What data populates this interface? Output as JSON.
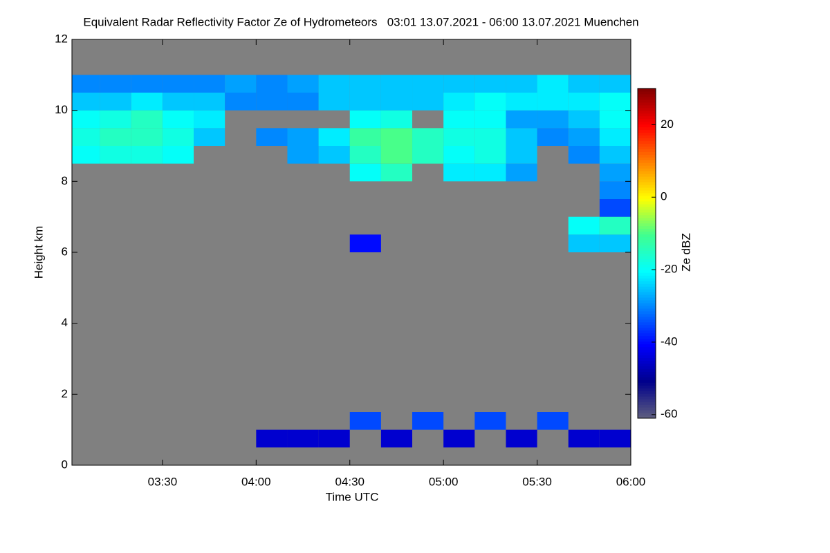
{
  "chart_data": {
    "type": "heatmap",
    "title": "Equivalent Radar Reflectivity Factor Ze of Hydrometeors   03:01 13.07.2021 - 06:00 13.07.2021 Muenchen",
    "x_label": "Time UTC",
    "y_label": "Height km",
    "colorbar_label": "Ze dBZ",
    "background_color": "#808080",
    "colormap": [
      "#5f5f7f",
      "#00008c",
      "#0000ff",
      "#0080ff",
      "#00ffff",
      "#40ff90",
      "#ffff00",
      "#ff8000",
      "#ff0000",
      "#800000"
    ],
    "clim": [
      -61,
      30
    ],
    "cticks": [
      20,
      0,
      -20,
      -40,
      -60
    ],
    "xlim": [
      181,
      360
    ],
    "xticks": [
      {
        "value": 210,
        "label": "03:30"
      },
      {
        "value": 240,
        "label": "04:00"
      },
      {
        "value": 270,
        "label": "04:30"
      },
      {
        "value": 300,
        "label": "05:00"
      },
      {
        "value": 330,
        "label": "05:30"
      },
      {
        "value": 360,
        "label": "06:00"
      }
    ],
    "ylim": [
      0,
      12
    ],
    "yticks": [
      0,
      2,
      4,
      6,
      8,
      10,
      12
    ],
    "xbins": [
      181,
      190,
      200,
      210,
      220,
      230,
      240,
      250,
      260,
      270,
      280,
      290,
      300,
      310,
      320,
      330,
      340,
      350,
      360
    ],
    "ybins": [
      0,
      0.5,
      1,
      1.5,
      2,
      2.5,
      3,
      3.5,
      4,
      4.5,
      5,
      5.5,
      6,
      6.5,
      7,
      7.5,
      8,
      8.5,
      9,
      9.5,
      10,
      10.5,
      11,
      11.5,
      12
    ],
    "z": [
      [
        null,
        null,
        null,
        null,
        null,
        null,
        null,
        null,
        null,
        null,
        null,
        null,
        null,
        null,
        null,
        null,
        null,
        -20,
        -18,
        -20,
        -25,
        -30,
        null,
        null
      ],
      [
        null,
        null,
        null,
        null,
        null,
        null,
        null,
        null,
        null,
        null,
        null,
        null,
        null,
        null,
        null,
        null,
        null,
        -18,
        -15,
        -18,
        -25,
        -30,
        null,
        null
      ],
      [
        null,
        null,
        null,
        null,
        null,
        null,
        null,
        null,
        null,
        null,
        null,
        null,
        null,
        null,
        null,
        null,
        null,
        -18,
        -15,
        -15,
        -22,
        -30,
        null,
        null
      ],
      [
        null,
        null,
        null,
        null,
        null,
        null,
        null,
        null,
        null,
        null,
        null,
        null,
        null,
        null,
        null,
        null,
        null,
        -20,
        -18,
        -20,
        -25,
        -30,
        null,
        null
      ],
      [
        null,
        null,
        null,
        null,
        null,
        null,
        null,
        null,
        null,
        null,
        null,
        null,
        null,
        null,
        null,
        null,
        null,
        null,
        -25,
        -22,
        -25,
        -30,
        null,
        null
      ],
      [
        null,
        null,
        null,
        null,
        null,
        null,
        null,
        null,
        null,
        null,
        null,
        null,
        null,
        null,
        null,
        null,
        null,
        null,
        null,
        null,
        -30,
        -28,
        null,
        null
      ],
      [
        null,
        -45,
        null,
        null,
        null,
        null,
        null,
        null,
        null,
        null,
        null,
        null,
        null,
        null,
        null,
        null,
        null,
        null,
        -30,
        null,
        -30,
        -30,
        null,
        null
      ],
      [
        null,
        -45,
        null,
        null,
        null,
        null,
        null,
        null,
        null,
        null,
        null,
        null,
        null,
        null,
        null,
        null,
        null,
        -28,
        -28,
        null,
        -30,
        -28,
        null,
        null
      ],
      [
        null,
        -45,
        null,
        null,
        null,
        null,
        null,
        null,
        null,
        null,
        null,
        null,
        null,
        null,
        null,
        null,
        null,
        -25,
        -22,
        null,
        -25,
        -25,
        null,
        null
      ],
      [
        null,
        null,
        -35,
        null,
        null,
        null,
        null,
        null,
        null,
        null,
        null,
        null,
        -40,
        null,
        null,
        null,
        -20,
        -15,
        -12,
        -20,
        -25,
        -25,
        null,
        null
      ],
      [
        null,
        -45,
        null,
        null,
        null,
        null,
        null,
        null,
        null,
        null,
        null,
        null,
        null,
        null,
        null,
        null,
        -15,
        -10,
        -10,
        -18,
        -25,
        -25,
        null,
        null
      ],
      [
        null,
        null,
        -35,
        null,
        null,
        null,
        null,
        null,
        null,
        null,
        null,
        null,
        null,
        null,
        null,
        null,
        null,
        -15,
        -15,
        null,
        -25,
        -25,
        null,
        null
      ],
      [
        null,
        -45,
        null,
        null,
        null,
        null,
        null,
        null,
        null,
        null,
        null,
        null,
        null,
        null,
        null,
        null,
        -22,
        -20,
        -18,
        -20,
        -22,
        -25,
        null,
        null
      ],
      [
        null,
        null,
        -35,
        null,
        null,
        null,
        null,
        null,
        null,
        null,
        null,
        null,
        null,
        null,
        null,
        null,
        -22,
        -18,
        -18,
        -20,
        -20,
        -25,
        null,
        null
      ],
      [
        null,
        -45,
        null,
        null,
        null,
        null,
        null,
        null,
        null,
        null,
        null,
        null,
        null,
        null,
        null,
        null,
        -28,
        -25,
        -25,
        -28,
        -22,
        -25,
        null,
        null
      ],
      [
        null,
        null,
        -35,
        null,
        null,
        null,
        null,
        null,
        null,
        null,
        null,
        null,
        null,
        null,
        null,
        null,
        null,
        null,
        -30,
        -28,
        -22,
        -22,
        null,
        null
      ],
      [
        null,
        -45,
        null,
        null,
        null,
        null,
        null,
        null,
        null,
        null,
        null,
        null,
        -25,
        -20,
        null,
        null,
        null,
        -30,
        -28,
        -25,
        -22,
        -25,
        null,
        null
      ],
      [
        null,
        -45,
        null,
        null,
        null,
        null,
        null,
        null,
        null,
        null,
        null,
        null,
        -25,
        -15,
        -35,
        -30,
        -28,
        -25,
        -22,
        -20,
        -20,
        -25,
        null,
        null
      ]
    ]
  }
}
